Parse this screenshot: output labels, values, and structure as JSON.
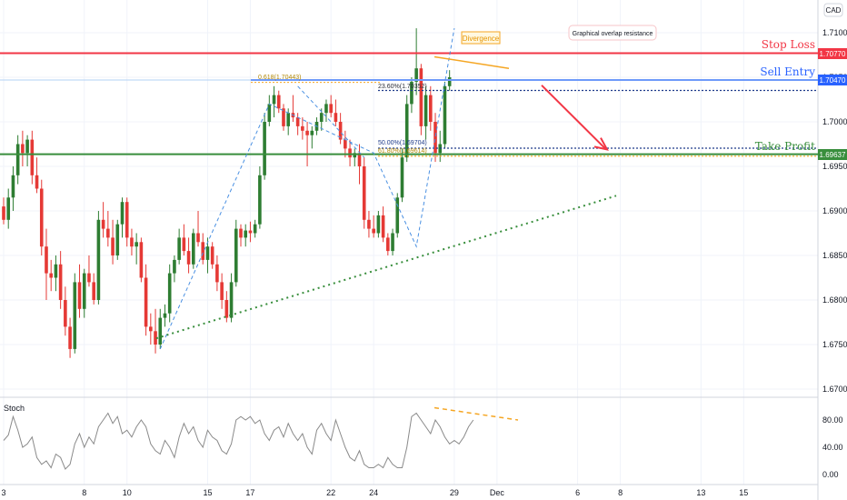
{
  "chart_data": {
    "type": "candlestick",
    "symbol_axis_label": "CAD",
    "y_ticks": [
      "1.71000",
      "1.70500",
      "1.70000",
      "1.69500",
      "1.69000",
      "1.68500",
      "1.68000",
      "1.67500",
      "1.67000"
    ],
    "y_tick_values": [
      1.71,
      1.705,
      1.7,
      1.695,
      1.69,
      1.685,
      1.68,
      1.675,
      1.67
    ],
    "ylim": [
      1.6675,
      1.7135
    ],
    "x_ticks": [
      {
        "label": "3",
        "index": 0
      },
      {
        "label": "8",
        "index": 17
      },
      {
        "label": "10",
        "index": 26
      },
      {
        "label": "15",
        "index": 43
      },
      {
        "label": "17",
        "index": 52
      },
      {
        "label": "22",
        "index": 69
      },
      {
        "label": "24",
        "index": 78
      },
      {
        "label": "29",
        "index": 95
      },
      {
        "label": "Dec",
        "index": 104
      },
      {
        "label": "6",
        "index": 121
      },
      {
        "label": "8",
        "index": 130
      },
      {
        "label": "13",
        "index": 147
      },
      {
        "label": "15",
        "index": 156
      }
    ],
    "levels": {
      "stop_loss": {
        "label": "Stop Loss",
        "value": 1.7077,
        "price_label": "1.70770",
        "color": "#f23645"
      },
      "sell_entry": {
        "label": "Sell Entry",
        "value": 1.7047,
        "price_label": "1.70470",
        "color": "#2962ff"
      },
      "take_profit": {
        "label": "Take Profit",
        "value": 1.69637,
        "price_label": "1.69637",
        "color": "#388e3c"
      }
    },
    "fib_labels": [
      {
        "text": "0.618(1.70443)",
        "value": 1.70443
      },
      {
        "text": "23.60%(1.70352)",
        "value": 1.70352
      },
      {
        "text": "50.00%(1.69704)",
        "value": 1.69704
      },
      {
        "text": "61.80%(1.69614)",
        "value": 1.69614
      }
    ],
    "annotations": {
      "divergence": "Divergence",
      "resistance": "Graphical overlap resistance"
    },
    "candles": [
      [
        1.6905,
        1.6915,
        1.6885,
        1.689
      ],
      [
        1.689,
        1.6925,
        1.688,
        1.6915
      ],
      [
        1.6915,
        1.695,
        1.69,
        1.694
      ],
      [
        1.694,
        1.6985,
        1.693,
        1.6975
      ],
      [
        1.6975,
        1.699,
        1.695,
        1.6965
      ],
      [
        1.6965,
        1.6985,
        1.695,
        1.698
      ],
      [
        1.698,
        1.699,
        1.693,
        1.694
      ],
      [
        1.694,
        1.696,
        1.692,
        1.6925
      ],
      [
        1.6925,
        1.6935,
        1.685,
        1.686
      ],
      [
        1.686,
        1.688,
        1.68,
        1.683
      ],
      [
        1.683,
        1.6845,
        1.681,
        1.6825
      ],
      [
        1.6825,
        1.685,
        1.681,
        1.684
      ],
      [
        1.684,
        1.6855,
        1.679,
        1.68
      ],
      [
        1.68,
        1.6815,
        1.676,
        1.677
      ],
      [
        1.677,
        1.678,
        1.6735,
        1.6745
      ],
      [
        1.6745,
        1.683,
        1.674,
        1.682
      ],
      [
        1.682,
        1.684,
        1.678,
        1.679
      ],
      [
        1.679,
        1.6835,
        1.678,
        1.683
      ],
      [
        1.683,
        1.685,
        1.6815,
        1.682
      ],
      [
        1.682,
        1.683,
        1.6795,
        1.68
      ],
      [
        1.68,
        1.69,
        1.6795,
        1.689
      ],
      [
        1.689,
        1.691,
        1.687,
        1.688
      ],
      [
        1.688,
        1.69,
        1.686,
        1.687
      ],
      [
        1.687,
        1.689,
        1.684,
        1.685
      ],
      [
        1.685,
        1.689,
        1.6845,
        1.6885
      ],
      [
        1.6885,
        1.6915,
        1.687,
        1.691
      ],
      [
        1.691,
        1.6915,
        1.686,
        1.687
      ],
      [
        1.687,
        1.688,
        1.685,
        1.686
      ],
      [
        1.686,
        1.6875,
        1.684,
        1.6865
      ],
      [
        1.6865,
        1.687,
        1.682,
        1.6825
      ],
      [
        1.6825,
        1.684,
        1.676,
        1.677
      ],
      [
        1.677,
        1.6785,
        1.675,
        1.6765
      ],
      [
        1.6765,
        1.679,
        1.674,
        1.675
      ],
      [
        1.675,
        1.679,
        1.6745,
        1.678
      ],
      [
        1.678,
        1.6795,
        1.677,
        1.6785
      ],
      [
        1.6785,
        1.684,
        1.6775,
        1.683
      ],
      [
        1.683,
        1.685,
        1.682,
        1.6845
      ],
      [
        1.6845,
        1.688,
        1.684,
        1.687
      ],
      [
        1.687,
        1.6885,
        1.685,
        1.6855
      ],
      [
        1.6855,
        1.687,
        1.683,
        1.684
      ],
      [
        1.684,
        1.688,
        1.6835,
        1.6875
      ],
      [
        1.6875,
        1.69,
        1.686,
        1.6865
      ],
      [
        1.6865,
        1.6875,
        1.684,
        1.6845
      ],
      [
        1.6845,
        1.687,
        1.683,
        1.686
      ],
      [
        1.686,
        1.6865,
        1.6835,
        1.684
      ],
      [
        1.684,
        1.685,
        1.681,
        1.682
      ],
      [
        1.682,
        1.683,
        1.679,
        1.68
      ],
      [
        1.68,
        1.681,
        1.6775,
        1.678
      ],
      [
        1.678,
        1.683,
        1.6775,
        1.682
      ],
      [
        1.682,
        1.689,
        1.6815,
        1.688
      ],
      [
        1.688,
        1.6885,
        1.686,
        1.687
      ],
      [
        1.687,
        1.6885,
        1.686,
        1.6878
      ],
      [
        1.6878,
        1.6888,
        1.6865,
        1.6875
      ],
      [
        1.6875,
        1.689,
        1.687,
        1.6885
      ],
      [
        1.6885,
        1.695,
        1.688,
        1.694
      ],
      [
        1.694,
        1.701,
        1.6935,
        1.7
      ],
      [
        1.7,
        1.703,
        1.6995,
        1.702
      ],
      [
        1.702,
        1.704,
        1.7005,
        1.703
      ],
      [
        1.703,
        1.7035,
        1.701,
        1.7015
      ],
      [
        1.7015,
        1.702,
        1.699,
        1.6995
      ],
      [
        1.6995,
        1.7015,
        1.6985,
        1.701
      ],
      [
        1.701,
        1.703,
        1.7,
        1.7005
      ],
      [
        1.7005,
        1.701,
        1.6985,
        1.6995
      ],
      [
        1.6995,
        1.7005,
        1.698,
        1.699
      ],
      [
        1.699,
        1.7,
        1.695,
        1.6985
      ],
      [
        1.6985,
        1.6995,
        1.697,
        1.699
      ],
      [
        1.699,
        1.7005,
        1.6985,
        1.7
      ],
      [
        1.7,
        1.7015,
        1.699,
        1.701
      ],
      [
        1.701,
        1.7025,
        1.7,
        1.702
      ],
      [
        1.702,
        1.703,
        1.7005,
        1.701
      ],
      [
        1.701,
        1.7025,
        1.6995,
        1.7
      ],
      [
        1.7,
        1.701,
        1.6975,
        1.698
      ],
      [
        1.698,
        1.699,
        1.696,
        1.697
      ],
      [
        1.697,
        1.698,
        1.695,
        1.696
      ],
      [
        1.696,
        1.697,
        1.695,
        1.6965
      ],
      [
        1.6965,
        1.6975,
        1.693,
        1.695
      ],
      [
        1.695,
        1.696,
        1.688,
        1.689
      ],
      [
        1.689,
        1.69,
        1.687,
        1.688
      ],
      [
        1.688,
        1.6895,
        1.687,
        1.6875
      ],
      [
        1.6875,
        1.69,
        1.687,
        1.6895
      ],
      [
        1.6895,
        1.6905,
        1.6865,
        1.687
      ],
      [
        1.687,
        1.6875,
        1.685,
        1.6855
      ],
      [
        1.6855,
        1.688,
        1.685,
        1.6875
      ],
      [
        1.6875,
        1.692,
        1.687,
        1.6915
      ],
      [
        1.6915,
        1.697,
        1.691,
        1.696
      ],
      [
        1.696,
        1.703,
        1.6955,
        1.702
      ],
      [
        1.702,
        1.705,
        1.701,
        1.7045
      ],
      [
        1.7045,
        1.7105,
        1.703,
        1.706
      ],
      [
        1.706,
        1.7065,
        1.6985,
        1.6995
      ],
      [
        1.6995,
        1.704,
        1.698,
        1.703
      ],
      [
        1.703,
        1.704,
        1.699,
        1.7
      ],
      [
        1.7,
        1.701,
        1.6955,
        1.6965
      ],
      [
        1.6965,
        1.699,
        1.6955,
        1.6975
      ],
      [
        1.6975,
        1.7045,
        1.697,
        1.704
      ],
      [
        1.704,
        1.7058,
        1.7035,
        1.705
      ]
    ],
    "stoch": {
      "y_ticks": [
        "80.00",
        "40.00",
        "0.00"
      ],
      "y_tick_values": [
        80,
        40,
        0
      ],
      "label": "Stoch",
      "values": [
        50,
        58,
        85,
        65,
        40,
        45,
        55,
        25,
        15,
        20,
        10,
        30,
        25,
        8,
        15,
        45,
        60,
        40,
        55,
        45,
        70,
        80,
        90,
        75,
        85,
        60,
        65,
        55,
        70,
        80,
        70,
        45,
        35,
        30,
        50,
        40,
        25,
        55,
        75,
        60,
        70,
        50,
        40,
        65,
        55,
        50,
        35,
        30,
        45,
        80,
        85,
        80,
        85,
        75,
        80,
        60,
        50,
        65,
        70,
        55,
        75,
        60,
        50,
        60,
        40,
        30,
        65,
        75,
        60,
        50,
        80,
        60,
        40,
        25,
        20,
        35,
        15,
        10,
        10,
        15,
        10,
        25,
        15,
        10,
        10,
        40,
        85,
        90,
        80,
        70,
        60,
        80,
        70,
        55,
        45,
        50,
        45,
        55,
        70,
        80
      ]
    }
  }
}
